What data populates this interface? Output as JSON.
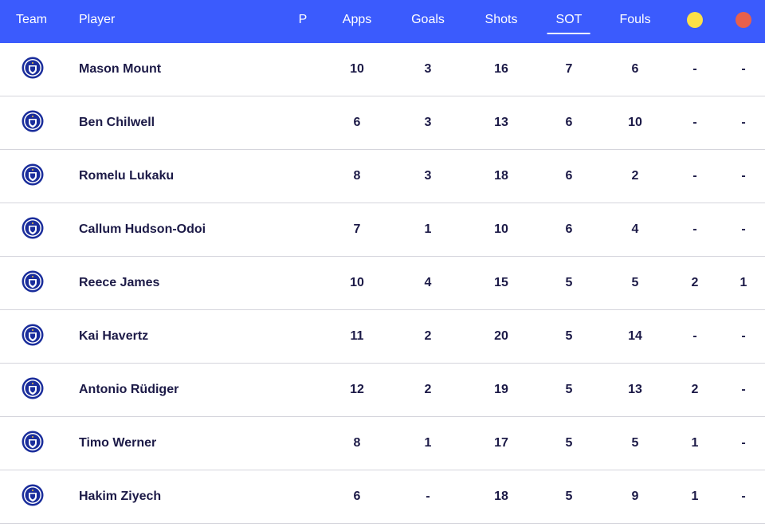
{
  "header": {
    "team": "Team",
    "player": "Player",
    "p": "P",
    "apps": "Apps",
    "goals": "Goals",
    "shots": "Shots",
    "sot": "SOT",
    "fouls": "Fouls",
    "yellow_color": "#fde047",
    "red_color": "#e8604c"
  },
  "rows": [
    {
      "team_icon": "chelsea-crest-icon",
      "player": "Mason Mount",
      "apps": "10",
      "goals": "3",
      "shots": "16",
      "sot": "7",
      "fouls": "6",
      "yellow": "-",
      "red": "-"
    },
    {
      "team_icon": "chelsea-crest-icon",
      "player": "Ben Chilwell",
      "apps": "6",
      "goals": "3",
      "shots": "13",
      "sot": "6",
      "fouls": "10",
      "yellow": "-",
      "red": "-"
    },
    {
      "team_icon": "chelsea-crest-icon",
      "player": "Romelu Lukaku",
      "apps": "8",
      "goals": "3",
      "shots": "18",
      "sot": "6",
      "fouls": "2",
      "yellow": "-",
      "red": "-"
    },
    {
      "team_icon": "chelsea-crest-icon",
      "player": "Callum Hudson-Odoi",
      "apps": "7",
      "goals": "1",
      "shots": "10",
      "sot": "6",
      "fouls": "4",
      "yellow": "-",
      "red": "-"
    },
    {
      "team_icon": "chelsea-crest-icon",
      "player": "Reece James",
      "apps": "10",
      "goals": "4",
      "shots": "15",
      "sot": "5",
      "fouls": "5",
      "yellow": "2",
      "red": "1"
    },
    {
      "team_icon": "chelsea-crest-icon",
      "player": "Kai Havertz",
      "apps": "11",
      "goals": "2",
      "shots": "20",
      "sot": "5",
      "fouls": "14",
      "yellow": "-",
      "red": "-"
    },
    {
      "team_icon": "chelsea-crest-icon",
      "player": "Antonio Rüdiger",
      "apps": "12",
      "goals": "2",
      "shots": "19",
      "sot": "5",
      "fouls": "13",
      "yellow": "2",
      "red": "-"
    },
    {
      "team_icon": "chelsea-crest-icon",
      "player": "Timo Werner",
      "apps": "8",
      "goals": "1",
      "shots": "17",
      "sot": "5",
      "fouls": "5",
      "yellow": "1",
      "red": "-"
    },
    {
      "team_icon": "chelsea-crest-icon",
      "player": "Hakim Ziyech",
      "apps": "6",
      "goals": "-",
      "shots": "18",
      "sot": "5",
      "fouls": "9",
      "yellow": "1",
      "red": "-"
    }
  ]
}
